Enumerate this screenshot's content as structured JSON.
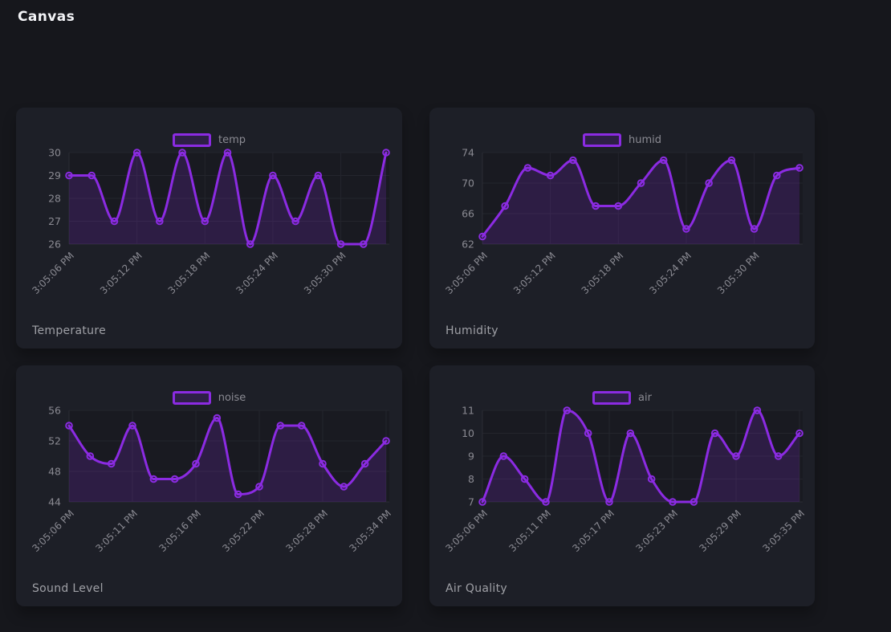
{
  "page": {
    "title": "Canvas"
  },
  "colors": {
    "page_bg": "#16171c",
    "card_bg": "#1d1f27",
    "plot_bg": "#191a21",
    "grid": "#24252d",
    "axis": "#2b2c34",
    "accent": "#8b2be2",
    "area_fill": "rgba(139,43,226,0.18)",
    "tick_label": "#8a8a92",
    "legend_label": "#8b8b93",
    "panel_title": "#9fa0a6",
    "page_title": "#f2f3f6"
  },
  "chart_data": [
    {
      "type": "area",
      "panel_title": "Temperature",
      "legend_label": "temp",
      "legend_position": "top",
      "grid": true,
      "values": [
        29,
        29,
        27,
        30,
        27,
        30,
        27,
        30,
        26,
        29,
        27,
        29,
        26,
        26,
        30
      ],
      "x_tick_labels": [
        "3:05:06 PM",
        "3:05:12 PM",
        "3:05:18 PM",
        "3:05:24 PM",
        "3:05:30 PM"
      ],
      "x_tick_indices": [
        0,
        3,
        6,
        9,
        12
      ],
      "y_ticks": [
        26,
        27,
        28,
        29,
        30
      ],
      "y_range": [
        26,
        30
      ]
    },
    {
      "type": "area",
      "panel_title": "Humidity",
      "legend_label": "humid",
      "legend_position": "top",
      "grid": true,
      "values": [
        63,
        67,
        72,
        71,
        73,
        67,
        67,
        70,
        73,
        64,
        70,
        73,
        64,
        71,
        72
      ],
      "x_tick_labels": [
        "3:05:06 PM",
        "3:05:12 PM",
        "3:05:18 PM",
        "3:05:24 PM",
        "3:05:30 PM"
      ],
      "x_tick_indices": [
        0,
        3,
        6,
        9,
        12
      ],
      "y_ticks": [
        62,
        66,
        70,
        74
      ],
      "y_range": [
        62,
        74
      ]
    },
    {
      "type": "area",
      "panel_title": "Sound Level",
      "legend_label": "noise",
      "legend_position": "top",
      "grid": true,
      "values": [
        54,
        50,
        49,
        54,
        47,
        47,
        49,
        55,
        45,
        46,
        54,
        54,
        49,
        46,
        49,
        52
      ],
      "x_tick_labels": [
        "3:05:06 PM",
        "3:05:11 PM",
        "3:05:16 PM",
        "3:05:22 PM",
        "3:05:28 PM",
        "3:05:34 PM"
      ],
      "x_tick_indices": [
        0,
        3,
        6,
        9,
        12,
        15
      ],
      "y_ticks": [
        44,
        48,
        52,
        56
      ],
      "y_range": [
        44,
        56
      ]
    },
    {
      "type": "area",
      "panel_title": "Air Quality",
      "legend_label": "air",
      "legend_position": "top",
      "grid": true,
      "values": [
        7,
        9,
        8,
        7,
        11,
        10,
        7,
        10,
        8,
        7,
        7,
        10,
        9,
        11,
        9,
        10
      ],
      "x_tick_labels": [
        "3:05:06 PM",
        "3:05:11 PM",
        "3:05:17 PM",
        "3:05:23 PM",
        "3:05:29 PM",
        "3:05:35 PM"
      ],
      "x_tick_indices": [
        0,
        3,
        6,
        9,
        12,
        15
      ],
      "y_ticks": [
        7,
        8,
        9,
        10,
        11
      ],
      "y_range": [
        7,
        11
      ]
    }
  ]
}
